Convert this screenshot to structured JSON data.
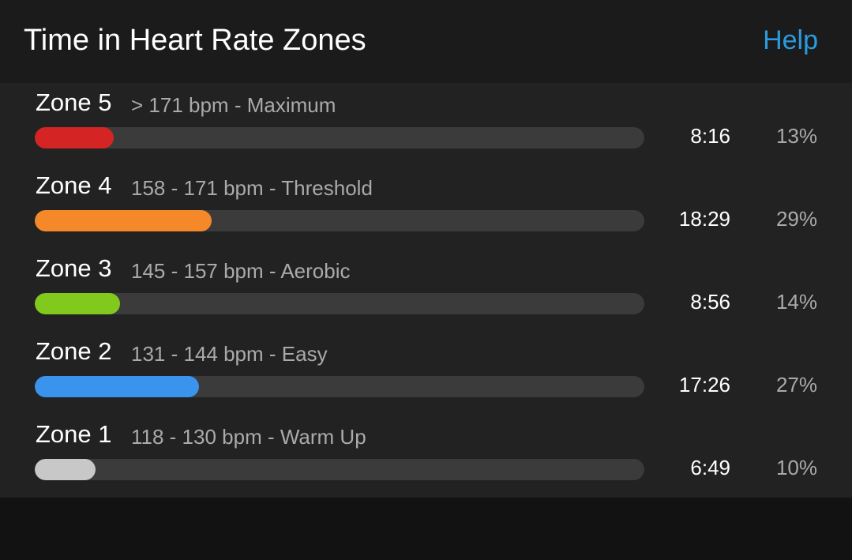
{
  "header": {
    "title": "Time in Heart Rate Zones",
    "help": "Help"
  },
  "zones": [
    {
      "name": "Zone 5",
      "range": "> 171 bpm - Maximum",
      "time": "8:16",
      "percent": 13,
      "percent_label": "13%",
      "color": "#d42424"
    },
    {
      "name": "Zone 4",
      "range": "158 - 171 bpm - Threshold",
      "time": "18:29",
      "percent": 29,
      "percent_label": "29%",
      "color": "#f5892a"
    },
    {
      "name": "Zone 3",
      "range": "145 - 157 bpm - Aerobic",
      "time": "8:56",
      "percent": 14,
      "percent_label": "14%",
      "color": "#82c91e"
    },
    {
      "name": "Zone 2",
      "range": "131 - 144 bpm - Easy",
      "time": "17:26",
      "percent": 27,
      "percent_label": "27%",
      "color": "#3a93ec"
    },
    {
      "name": "Zone 1",
      "range": "118 - 130 bpm - Warm Up",
      "time": "6:49",
      "percent": 10,
      "percent_label": "10%",
      "color": "#c8c8c8"
    }
  ]
}
